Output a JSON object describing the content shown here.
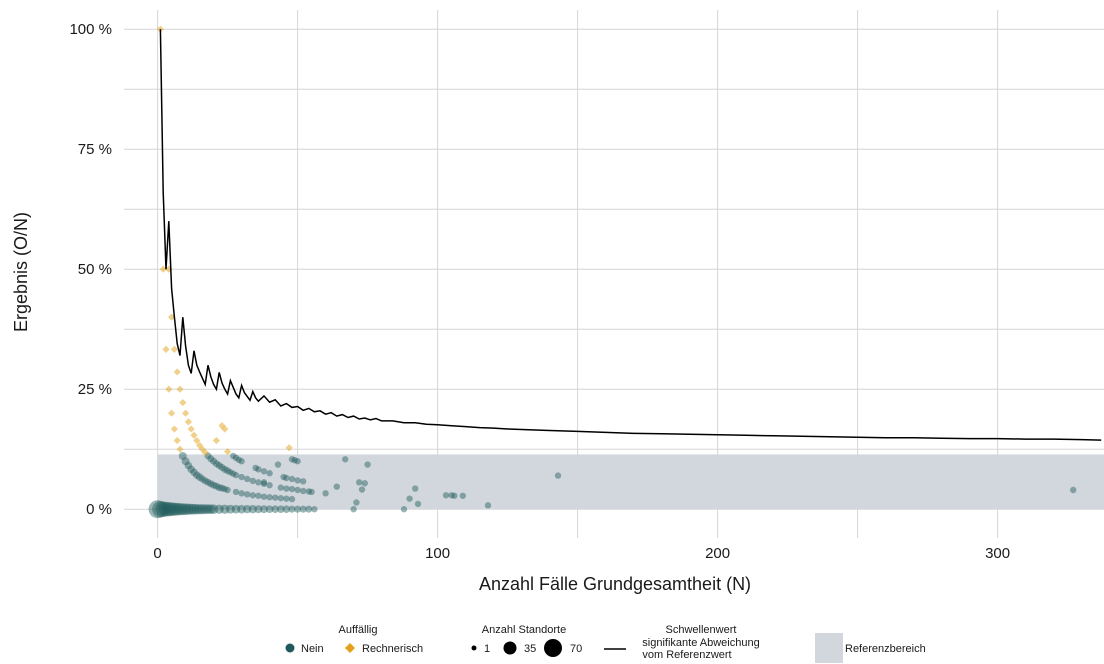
{
  "chart_data": {
    "type": "scatter",
    "xlabel": "Anzahl Fälle Grundgesamtheit (N)",
    "ylabel": "Ergebnis (O/N)",
    "xlim": [
      -12,
      338
    ],
    "ylim": [
      -0.06,
      1.04
    ],
    "x_ticks": [
      0,
      100,
      200,
      300
    ],
    "x_tick_labels": [
      "0",
      "100",
      "200",
      "300"
    ],
    "y_ticks": [
      0,
      0.25,
      0.5,
      0.75,
      1.0
    ],
    "y_tick_labels": [
      "0 %",
      "25 %",
      "50 %",
      "75 %",
      "100 %"
    ],
    "grid": true,
    "reference_range": {
      "label": "Referenzbereich",
      "ymin": 0,
      "ymax": 0.114,
      "color": "#d1d7dc"
    },
    "threshold": {
      "label": "Schwellenwert signifikante Abweichung vom Referenzwert",
      "x": [
        1,
        2,
        3,
        4,
        5,
        6,
        7,
        8,
        9,
        10,
        11,
        12,
        13,
        14,
        15,
        16,
        17,
        18,
        19,
        20,
        21,
        22,
        23,
        24,
        25,
        26,
        27,
        28,
        29,
        30,
        31,
        32,
        33,
        34,
        35,
        36,
        38,
        40,
        42,
        44,
        46,
        48,
        50,
        52,
        54,
        56,
        58,
        60,
        62,
        64,
        66,
        68,
        70,
        72,
        74,
        76,
        78,
        80,
        84,
        88,
        92,
        96,
        100,
        105,
        110,
        115,
        120,
        125,
        130,
        135,
        140,
        150,
        160,
        170,
        180,
        190,
        200,
        210,
        220,
        230,
        240,
        250,
        260,
        270,
        280,
        290,
        300,
        310,
        320,
        330,
        337
      ],
      "y": [
        1.0,
        0.66,
        0.5,
        0.6,
        0.46,
        0.4,
        0.345,
        0.32,
        0.4,
        0.34,
        0.3,
        0.283,
        0.33,
        0.3,
        0.286,
        0.273,
        0.26,
        0.3,
        0.276,
        0.26,
        0.25,
        0.285,
        0.263,
        0.25,
        0.24,
        0.268,
        0.254,
        0.24,
        0.232,
        0.258,
        0.243,
        0.235,
        0.227,
        0.245,
        0.232,
        0.225,
        0.236,
        0.223,
        0.228,
        0.215,
        0.22,
        0.212,
        0.214,
        0.206,
        0.21,
        0.203,
        0.205,
        0.198,
        0.201,
        0.194,
        0.197,
        0.191,
        0.194,
        0.188,
        0.19,
        0.186,
        0.189,
        0.184,
        0.184,
        0.18,
        0.18,
        0.177,
        0.176,
        0.174,
        0.172,
        0.17,
        0.169,
        0.167,
        0.166,
        0.165,
        0.164,
        0.162,
        0.16,
        0.158,
        0.157,
        0.156,
        0.155,
        0.154,
        0.153,
        0.152,
        0.151,
        0.15,
        0.149,
        0.149,
        0.148,
        0.147,
        0.147,
        0.146,
        0.146,
        0.145,
        0.144
      ]
    },
    "series": [
      {
        "name": "Nein",
        "marker": "circle",
        "color": "#1f5a5a",
        "points": [
          [
            0,
            0,
            70
          ],
          [
            1,
            0,
            55
          ],
          [
            2,
            0,
            45
          ],
          [
            3,
            0,
            40
          ],
          [
            4,
            0,
            35
          ],
          [
            5,
            0,
            32
          ],
          [
            6,
            0,
            28
          ],
          [
            7,
            0,
            25
          ],
          [
            8,
            0,
            22
          ],
          [
            9,
            0,
            20
          ],
          [
            10,
            0,
            18
          ],
          [
            11,
            0,
            16
          ],
          [
            12,
            0,
            15
          ],
          [
            13,
            0,
            14
          ],
          [
            14,
            0,
            12
          ],
          [
            15,
            0,
            12
          ],
          [
            16,
            0,
            11
          ],
          [
            17,
            0,
            10
          ],
          [
            18,
            0,
            10
          ],
          [
            19,
            0,
            9
          ],
          [
            20,
            0,
            9
          ],
          [
            22,
            0,
            8
          ],
          [
            24,
            0,
            8
          ],
          [
            26,
            0,
            7
          ],
          [
            28,
            0,
            6
          ],
          [
            30,
            0,
            6
          ],
          [
            32,
            0,
            5
          ],
          [
            34,
            0,
            5
          ],
          [
            36,
            0,
            4
          ],
          [
            38,
            0,
            4
          ],
          [
            40,
            0,
            3
          ],
          [
            42,
            0,
            3
          ],
          [
            44,
            0,
            3
          ],
          [
            46,
            0,
            3
          ],
          [
            48,
            0,
            2
          ],
          [
            50,
            0,
            2
          ],
          [
            52,
            0,
            2
          ],
          [
            54,
            0,
            2
          ],
          [
            56,
            0,
            1
          ],
          [
            70,
            0,
            1
          ],
          [
            88,
            0,
            1
          ],
          [
            9,
            0.111,
            4
          ],
          [
            10,
            0.1,
            4
          ],
          [
            11,
            0.091,
            3
          ],
          [
            12,
            0.083,
            3
          ],
          [
            13,
            0.077,
            3
          ],
          [
            14,
            0.071,
            3
          ],
          [
            15,
            0.067,
            3
          ],
          [
            16,
            0.063,
            2
          ],
          [
            17,
            0.059,
            2
          ],
          [
            18,
            0.056,
            2
          ],
          [
            19,
            0.053,
            2
          ],
          [
            20,
            0.05,
            2
          ],
          [
            21,
            0.048,
            2
          ],
          [
            22,
            0.045,
            2
          ],
          [
            23,
            0.044,
            2
          ],
          [
            24,
            0.042,
            1
          ],
          [
            18,
            0.111,
            2
          ],
          [
            19,
            0.105,
            2
          ],
          [
            20,
            0.1,
            2
          ],
          [
            21,
            0.095,
            2
          ],
          [
            22,
            0.091,
            2
          ],
          [
            23,
            0.087,
            2
          ],
          [
            24,
            0.083,
            2
          ],
          [
            25,
            0.08,
            2
          ],
          [
            26,
            0.077,
            1
          ],
          [
            27,
            0.074,
            1
          ],
          [
            28,
            0.071,
            1
          ],
          [
            27,
            0.111,
            1
          ],
          [
            28,
            0.107,
            1
          ],
          [
            29,
            0.103,
            1
          ],
          [
            30,
            0.1,
            1
          ],
          [
            35,
            0.086,
            1
          ],
          [
            36,
            0.083,
            1
          ],
          [
            38,
            0.079,
            1
          ],
          [
            25,
            0.04,
            1
          ],
          [
            28,
            0.036,
            1
          ],
          [
            30,
            0.033,
            1
          ],
          [
            32,
            0.031,
            1
          ],
          [
            34,
            0.029,
            1
          ],
          [
            36,
            0.028,
            1
          ],
          [
            38,
            0.026,
            1
          ],
          [
            40,
            0.025,
            1
          ],
          [
            42,
            0.024,
            1
          ],
          [
            44,
            0.023,
            1
          ],
          [
            46,
            0.022,
            1
          ],
          [
            48,
            0.021,
            1
          ],
          [
            30,
            0.067,
            1
          ],
          [
            32,
            0.063,
            1
          ],
          [
            34,
            0.059,
            1
          ],
          [
            36,
            0.056,
            1
          ],
          [
            38,
            0.053,
            1
          ],
          [
            40,
            0.05,
            1
          ],
          [
            44,
            0.045,
            1
          ],
          [
            46,
            0.043,
            1
          ],
          [
            48,
            0.042,
            1
          ],
          [
            50,
            0.04,
            1
          ],
          [
            38,
            0.056,
            1
          ],
          [
            40,
            0.075,
            1
          ],
          [
            45,
            0.067,
            1
          ],
          [
            46,
            0.065,
            1
          ],
          [
            48,
            0.063,
            1
          ],
          [
            50,
            0.06,
            1
          ],
          [
            52,
            0.058,
            1
          ],
          [
            43,
            0.093,
            1
          ],
          [
            48,
            0.104,
            1
          ],
          [
            49,
            0.102,
            1
          ],
          [
            50,
            0.1,
            1
          ],
          [
            52,
            0.038,
            1
          ],
          [
            54,
            0.037,
            1
          ],
          [
            55,
            0.036,
            1
          ],
          [
            60,
            0.033,
            1
          ],
          [
            64,
            0.047,
            1
          ],
          [
            67,
            0.104,
            1
          ],
          [
            72,
            0.056,
            1
          ],
          [
            73,
            0.041,
            1
          ],
          [
            74,
            0.054,
            1
          ],
          [
            75,
            0.093,
            1
          ],
          [
            71,
            0.014,
            1
          ],
          [
            90,
            0.022,
            1
          ],
          [
            92,
            0.043,
            1
          ],
          [
            93,
            0.011,
            1
          ],
          [
            103,
            0.029,
            1
          ],
          [
            105,
            0.029,
            1
          ],
          [
            106,
            0.028,
            1
          ],
          [
            109,
            0.028,
            1
          ],
          [
            118,
            0.008,
            1
          ],
          [
            143,
            0.07,
            1
          ],
          [
            327,
            0.04,
            1
          ]
        ]
      },
      {
        "name": "Rechnerisch",
        "marker": "diamond",
        "color": "#e3a21a",
        "points": [
          [
            1,
            1.0,
            1
          ],
          [
            2,
            0.5,
            1
          ],
          [
            3,
            0.333,
            1
          ],
          [
            4,
            0.5,
            1
          ],
          [
            4,
            0.25,
            1
          ],
          [
            5,
            0.4,
            1
          ],
          [
            5,
            0.2,
            1
          ],
          [
            6,
            0.333,
            1
          ],
          [
            6,
            0.167,
            1
          ],
          [
            7,
            0.286,
            1
          ],
          [
            7,
            0.143,
            1
          ],
          [
            8,
            0.25,
            1
          ],
          [
            8,
            0.125,
            1
          ],
          [
            9,
            0.222,
            1
          ],
          [
            10,
            0.2,
            1
          ],
          [
            11,
            0.182,
            1
          ],
          [
            12,
            0.167,
            1
          ],
          [
            13,
            0.154,
            1
          ],
          [
            14,
            0.143,
            1
          ],
          [
            15,
            0.133,
            1
          ],
          [
            16,
            0.125,
            1
          ],
          [
            17,
            0.118,
            1
          ],
          [
            21,
            0.143,
            1
          ],
          [
            23,
            0.174,
            1
          ],
          [
            24,
            0.167,
            1
          ],
          [
            25,
            0.12,
            1
          ],
          [
            47,
            0.128,
            1
          ]
        ]
      }
    ],
    "legend": {
      "position": "bottom",
      "group_title": "Auffällig",
      "group_items": [
        "Nein",
        "Rechnerisch"
      ],
      "size_title": "Anzahl Standorte",
      "size_items": [
        "1",
        "35",
        "70"
      ],
      "line_title": "Schwellenwert",
      "line_text_1": "signifikante Abweichung",
      "line_text_2": "vom Referenzwert",
      "reference_label": "Referenzbereich"
    }
  }
}
